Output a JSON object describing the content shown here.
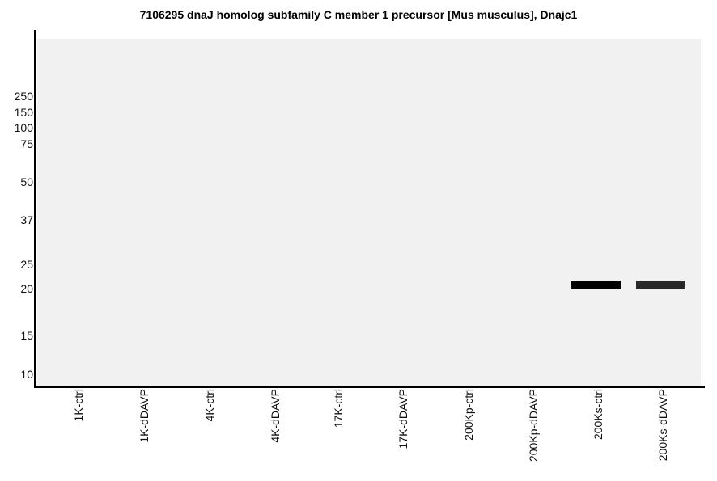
{
  "title": "7106295 dnaJ homolog subfamily C member 1 precursor [Mus musculus], Dnajc1",
  "y_axis": {
    "tick_labels": [
      "250",
      "150",
      "100",
      "75",
      "50",
      "37",
      "25",
      "20",
      "15",
      "10"
    ]
  },
  "x_axis": {
    "lane_labels": [
      "1K-ctrl",
      "1K-dDAVP",
      "4K-ctrl",
      "4K-dDAVP",
      "17K-ctrl",
      "17K-dDAVP",
      "200Kp-ctrl",
      "200Kp-dDAVP",
      "200Ks-ctrl",
      "200Ks-dDAVP"
    ]
  },
  "colors": {
    "page_background": "#ffffff",
    "plot_background": "#f1f1f1",
    "axis": "#000000",
    "tick_text": "#111111"
  },
  "chart_data": {
    "type": "gel-blot",
    "title": "7106295 dnaJ homolog subfamily C member 1 precursor [Mus musculus], Dnajc1",
    "x_lanes": [
      "1K-ctrl",
      "1K-dDAVP",
      "4K-ctrl",
      "4K-dDAVP",
      "17K-ctrl",
      "17K-dDAVP",
      "200Kp-ctrl",
      "200Kp-dDAVP",
      "200Ks-ctrl",
      "200Ks-dDAVP"
    ],
    "y_mw_ladder_kda": [
      250,
      150,
      100,
      75,
      50,
      37,
      25,
      20,
      15,
      10
    ],
    "y_scale": "molecular-weight ladder, nonlinear gel-migration spacing, high at top",
    "grid": false,
    "legend": "none",
    "bands": [
      {
        "lane": "200Ks-ctrl",
        "mw_kda_estimate": 21,
        "color": "#000000",
        "relative_intensity": 1.0
      },
      {
        "lane": "200Ks-dDAVP",
        "mw_kda_estimate": 21,
        "color": "#282828",
        "relative_intensity": 0.85
      }
    ]
  }
}
